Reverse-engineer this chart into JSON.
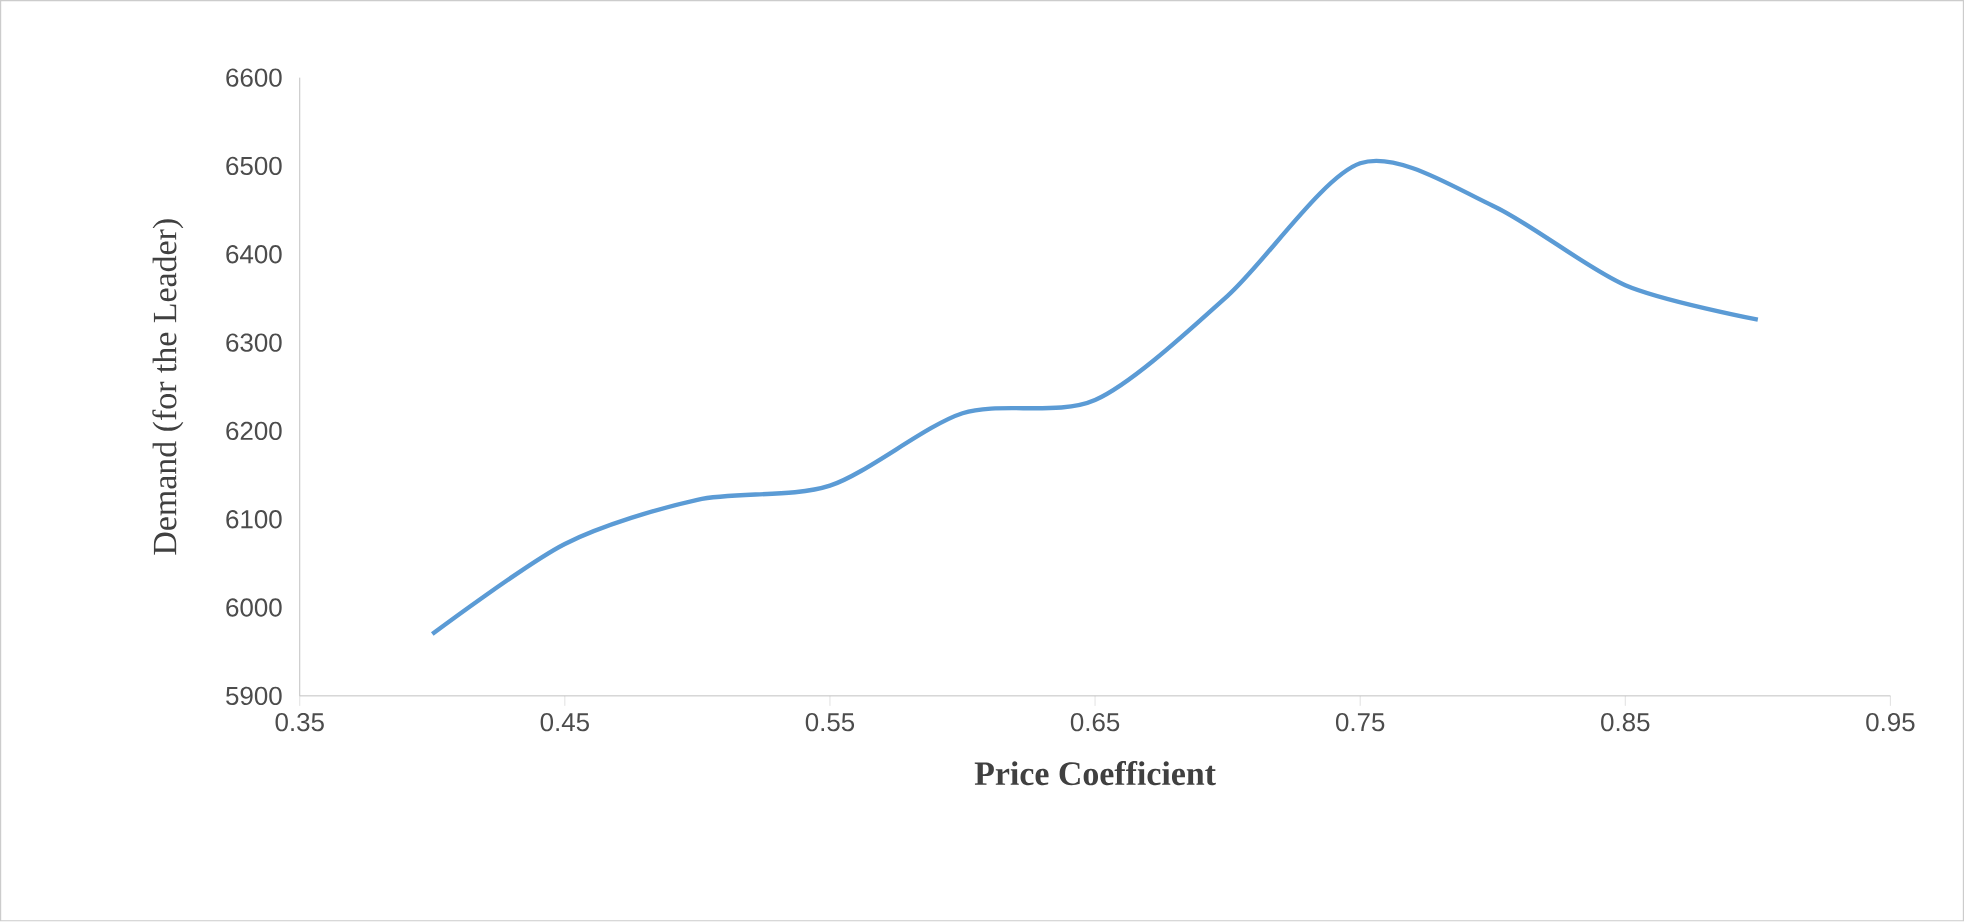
{
  "chart_data": {
    "type": "line",
    "xlabel": "Price Coefficient",
    "ylabel": "Demand (for the Leader)",
    "x": [
      0.4,
      0.45,
      0.5,
      0.55,
      0.6,
      0.65,
      0.7,
      0.75,
      0.8,
      0.85,
      0.9
    ],
    "series": [
      {
        "color": "#5b9bd5",
        "values": [
          5970,
          6072,
          6122,
          6138,
          6220,
          6235,
          6353,
          6503,
          6455,
          6365,
          6326
        ]
      }
    ],
    "xlim": [
      0.35,
      0.95
    ],
    "xticks": [
      0.35,
      0.45,
      0.55,
      0.65,
      0.75,
      0.85,
      0.95
    ],
    "ylim": [
      5900,
      6600
    ],
    "yticks": [
      5900,
      6000,
      6100,
      6200,
      6300,
      6400,
      6500,
      6600
    ],
    "marker": "none",
    "line_style": "solid"
  }
}
